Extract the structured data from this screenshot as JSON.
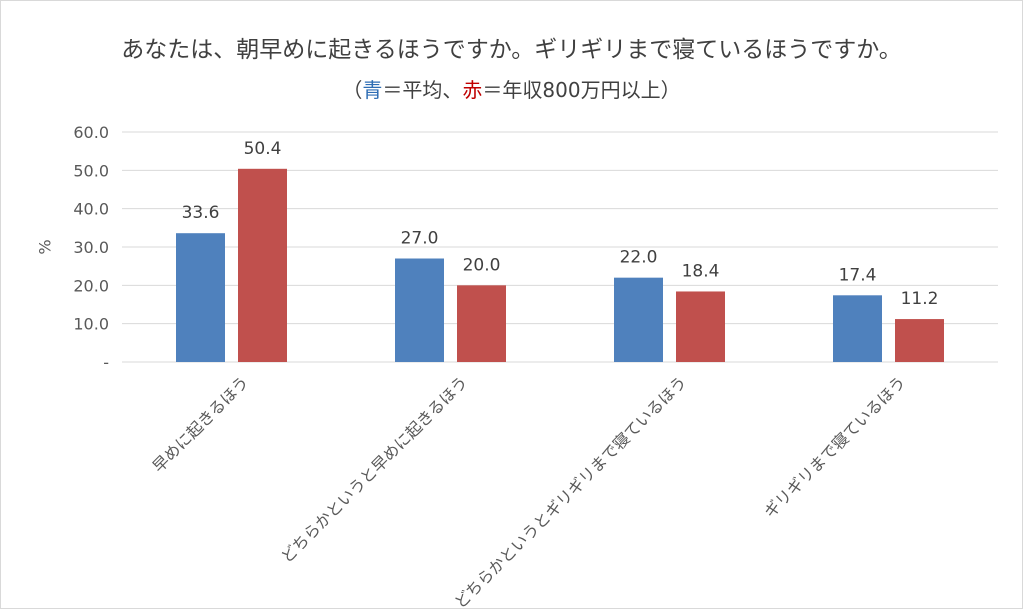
{
  "chart_data": {
    "type": "bar",
    "title": "あなたは、朝早めに起きるほうですか。ギリギリまで寝ているほうですか。",
    "subtitle": {
      "open": "（",
      "blue_word": "青",
      "mid1": "＝平均、",
      "red_word": "赤",
      "mid2": "＝年収800万円以上）"
    },
    "categories": [
      "早めに起きるほう",
      "どちらかというと早めに起きるほう",
      "どちらかというとギリギリまで寝ているほう",
      "ギリギリまで寝ているほう"
    ],
    "series": [
      {
        "name": "平均",
        "color": "#4f81bd",
        "values": [
          33.6,
          27.0,
          22.0,
          17.4
        ]
      },
      {
        "name": "年収800万円以上",
        "color": "#c0504d",
        "values": [
          50.4,
          20.0,
          18.4,
          11.2
        ]
      }
    ],
    "value_labels": [
      [
        "33.6",
        "27.0",
        "22.0",
        "17.4"
      ],
      [
        "50.4",
        "20.0",
        "18.4",
        "11.2"
      ]
    ],
    "xlabel": "",
    "ylabel": "%",
    "ylim": [
      0,
      60
    ],
    "yticks": [
      0,
      10,
      20,
      30,
      40,
      50,
      60
    ],
    "ytick_labels": [
      "-",
      "10.0",
      "20.0",
      "30.0",
      "40.0",
      "50.0",
      "60.0"
    ],
    "grid": true,
    "legend": "none"
  }
}
